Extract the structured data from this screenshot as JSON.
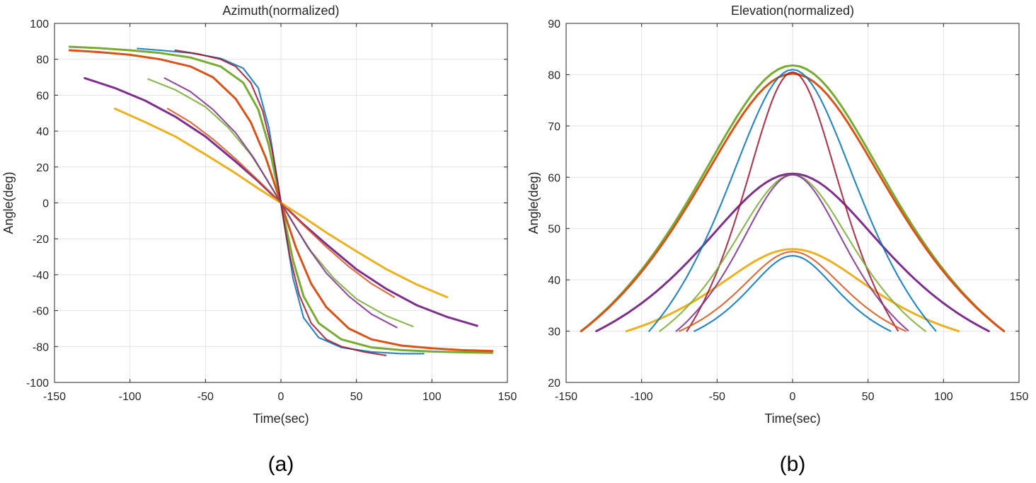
{
  "colors": {
    "blue": "#0072BD",
    "orange": "#D95319",
    "yellow": "#EDB120",
    "purple": "#7E2F8E",
    "green": "#77AC30",
    "cyan": "#4DBEEE",
    "darkred": "#A2142F",
    "axis": "#262626",
    "grid": "#e3e3e3"
  },
  "chart_data": [
    {
      "type": "line",
      "panel_caption": "(a)",
      "title": "Azimuth(normalized)",
      "xlabel": "Time(sec)",
      "ylabel": "Angle(deg)",
      "xlim": [
        -150,
        150
      ],
      "ylim": [
        -100,
        100
      ],
      "xticks": [
        -150,
        -100,
        -50,
        0,
        50,
        100,
        150
      ],
      "yticks": [
        -100,
        -80,
        -60,
        -40,
        -20,
        0,
        20,
        40,
        60,
        80,
        100
      ],
      "xtick_labels": [
        "-150",
        "-100",
        "-50",
        "0",
        "50",
        "100",
        "150"
      ],
      "ytick_labels": [
        "-100",
        "-80",
        "-60",
        "-40",
        "-20",
        "0",
        "20",
        "40",
        "60",
        "80",
        "100"
      ],
      "grid": true,
      "series": [
        {
          "name": "pass-green-solid",
          "color": "green",
          "style": "solid",
          "points": [
            [
              -140,
              87
            ],
            [
              -120,
              86.2
            ],
            [
              -100,
              85
            ],
            [
              -80,
              83.5
            ],
            [
              -60,
              81
            ],
            [
              -40,
              76
            ],
            [
              -25,
              67
            ],
            [
              -15,
              52
            ],
            [
              -8,
              32
            ],
            [
              -3,
              12
            ],
            [
              0,
              0
            ],
            [
              3,
              -12
            ],
            [
              8,
              -32
            ],
            [
              15,
              -52
            ],
            [
              25,
              -67
            ],
            [
              40,
              -76
            ],
            [
              60,
              -80.5
            ],
            [
              80,
              -82
            ],
            [
              100,
              -82.8
            ],
            [
              120,
              -83.2
            ],
            [
              140,
              -83.5
            ]
          ]
        },
        {
          "name": "pass-orange-solid",
          "color": "orange",
          "style": "solid",
          "points": [
            [
              -140,
              85
            ],
            [
              -120,
              84
            ],
            [
              -100,
              82.5
            ],
            [
              -80,
              80
            ],
            [
              -60,
              76
            ],
            [
              -45,
              70
            ],
            [
              -30,
              58
            ],
            [
              -20,
              45
            ],
            [
              -10,
              25
            ],
            [
              -4,
              10
            ],
            [
              0,
              0
            ],
            [
              4,
              -10
            ],
            [
              10,
              -25
            ],
            [
              20,
              -45
            ],
            [
              30,
              -58
            ],
            [
              45,
              -70
            ],
            [
              60,
              -76
            ],
            [
              80,
              -79.5
            ],
            [
              100,
              -81
            ],
            [
              120,
              -82
            ],
            [
              140,
              -82.5
            ]
          ]
        },
        {
          "name": "pass-purple-solid",
          "color": "purple",
          "style": "solid",
          "points": [
            [
              -130,
              69.5
            ],
            [
              -110,
              64
            ],
            [
              -90,
              57
            ],
            [
              -70,
              48
            ],
            [
              -50,
              37
            ],
            [
              -30,
              23
            ],
            [
              -15,
              12
            ],
            [
              0,
              0
            ],
            [
              15,
              -12
            ],
            [
              30,
              -23
            ],
            [
              50,
              -37
            ],
            [
              70,
              -48
            ],
            [
              90,
              -57
            ],
            [
              110,
              -63.5
            ],
            [
              130,
              -68.5
            ]
          ]
        },
        {
          "name": "pass-yellow-solid",
          "color": "yellow",
          "style": "solid",
          "points": [
            [
              -110,
              52.5
            ],
            [
              -90,
              45
            ],
            [
              -70,
              37
            ],
            [
              -50,
              27
            ],
            [
              -30,
              16.5
            ],
            [
              -15,
              8
            ],
            [
              0,
              0
            ],
            [
              15,
              -8
            ],
            [
              30,
              -16.5
            ],
            [
              50,
              -27
            ],
            [
              70,
              -37
            ],
            [
              90,
              -45.5
            ],
            [
              110,
              -52.5
            ]
          ]
        },
        {
          "name": "pass-blue-dotted",
          "color": "blue",
          "style": "dotted",
          "points": [
            [
              -95,
              86
            ],
            [
              -80,
              85
            ],
            [
              -60,
              83.5
            ],
            [
              -40,
              80.5
            ],
            [
              -25,
              75
            ],
            [
              -15,
              64
            ],
            [
              -8,
              42
            ],
            [
              -3,
              16
            ],
            [
              0,
              0
            ],
            [
              3,
              -16
            ],
            [
              8,
              -42
            ],
            [
              15,
              -64
            ],
            [
              25,
              -75
            ],
            [
              40,
              -80.5
            ],
            [
              60,
              -83
            ],
            [
              80,
              -84
            ],
            [
              95,
              -84
            ]
          ]
        },
        {
          "name": "pass-darkred-dotted",
          "color": "darkred",
          "style": "dotted",
          "points": [
            [
              -70,
              85
            ],
            [
              -55,
              83
            ],
            [
              -40,
              80
            ],
            [
              -30,
              76
            ],
            [
              -20,
              67
            ],
            [
              -12,
              51
            ],
            [
              -6,
              30
            ],
            [
              -2,
              11
            ],
            [
              0,
              0
            ],
            [
              2,
              -11
            ],
            [
              6,
              -30
            ],
            [
              12,
              -51
            ],
            [
              20,
              -67
            ],
            [
              30,
              -76
            ],
            [
              40,
              -80
            ],
            [
              55,
              -83
            ],
            [
              70,
              -85
            ]
          ]
        },
        {
          "name": "pass-lightgreen-dotted",
          "color": "green",
          "style": "dotted",
          "points": [
            [
              -88,
              69
            ],
            [
              -70,
              63
            ],
            [
              -50,
              53.5
            ],
            [
              -35,
              42
            ],
            [
              -20,
              27
            ],
            [
              -10,
              14
            ],
            [
              0,
              0
            ],
            [
              10,
              -14
            ],
            [
              20,
              -27
            ],
            [
              35,
              -42
            ],
            [
              50,
              -53.5
            ],
            [
              70,
              -63
            ],
            [
              88,
              -69
            ]
          ]
        },
        {
          "name": "pass-magenta-dotted",
          "color": "purple",
          "style": "dotted",
          "points": [
            [
              -77,
              69.5
            ],
            [
              -60,
              62
            ],
            [
              -45,
              52
            ],
            [
              -30,
              39
            ],
            [
              -18,
              25
            ],
            [
              -8,
              11
            ],
            [
              0,
              0
            ],
            [
              8,
              -11
            ],
            [
              18,
              -25
            ],
            [
              30,
              -39
            ],
            [
              45,
              -52
            ],
            [
              60,
              -62
            ],
            [
              77,
              -69.5
            ]
          ]
        },
        {
          "name": "pass-salmon-dotted",
          "color": "orange",
          "style": "dotted",
          "points": [
            [
              -75,
              52.5
            ],
            [
              -60,
              45
            ],
            [
              -45,
              35.5
            ],
            [
              -30,
              24.5
            ],
            [
              -15,
              12.5
            ],
            [
              0,
              0
            ],
            [
              15,
              -12.5
            ],
            [
              30,
              -24.5
            ],
            [
              45,
              -35.5
            ],
            [
              60,
              -45
            ],
            [
              75,
              -52.5
            ]
          ]
        }
      ]
    },
    {
      "type": "line",
      "panel_caption": "(b)",
      "title": "Elevation(normalized)",
      "xlabel": "Time(sec)",
      "ylabel": "Angle(deg)",
      "xlim": [
        -150,
        150
      ],
      "ylim": [
        20,
        90
      ],
      "xticks": [
        -150,
        -100,
        -50,
        0,
        50,
        100,
        150
      ],
      "yticks": [
        20,
        30,
        40,
        50,
        60,
        70,
        80,
        90
      ],
      "xtick_labels": [
        "-150",
        "-100",
        "-50",
        "0",
        "50",
        "100",
        "150"
      ],
      "ytick_labels": [
        "20",
        "30",
        "40",
        "50",
        "60",
        "70",
        "80",
        "90"
      ],
      "grid": true,
      "series": [
        {
          "name": "pass-green-solid",
          "color": "green",
          "style": "solid",
          "peak": 81.8,
          "half_width": 140,
          "floor": 30
        },
        {
          "name": "pass-orange-solid",
          "color": "orange",
          "style": "solid",
          "peak": 80.2,
          "half_width": 140,
          "floor": 30
        },
        {
          "name": "pass-purple-solid",
          "color": "purple",
          "style": "solid",
          "peak": 60.7,
          "half_width": 130,
          "floor": 30
        },
        {
          "name": "pass-yellow-solid",
          "color": "yellow",
          "style": "solid",
          "peak": 46,
          "half_width": 110,
          "floor": 30
        },
        {
          "name": "pass-blue-dotted",
          "color": "blue",
          "style": "dotted",
          "peak": 81,
          "half_width": 95,
          "floor": 30
        },
        {
          "name": "pass-darkred-dotted",
          "color": "darkred",
          "style": "dotted",
          "peak": 80.5,
          "half_width": 70,
          "floor": 30
        },
        {
          "name": "pass-lightgreen-dotted",
          "color": "green",
          "style": "dotted",
          "peak": 60.5,
          "half_width": 88,
          "floor": 30
        },
        {
          "name": "pass-magenta-dotted",
          "color": "purple",
          "style": "dotted",
          "peak": 60.5,
          "half_width": 77,
          "floor": 30
        },
        {
          "name": "pass-salmon-dotted",
          "color": "orange",
          "style": "dotted",
          "peak": 45.5,
          "half_width": 75,
          "floor": 30
        },
        {
          "name": "pass-blue2-dotted",
          "color": "blue",
          "style": "dotted",
          "peak": 44.7,
          "half_width": 65,
          "floor": 30
        }
      ]
    }
  ]
}
